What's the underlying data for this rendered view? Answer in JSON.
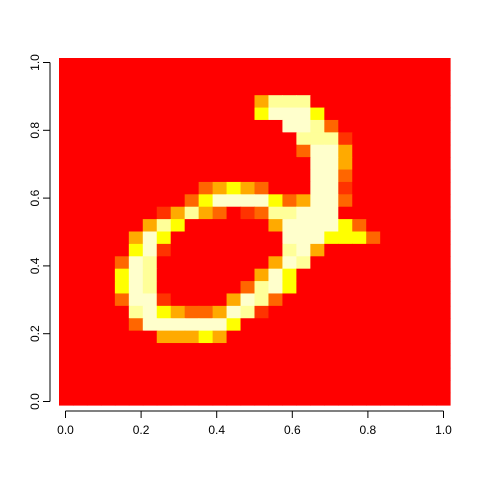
{
  "chart_data": {
    "type": "heatmap",
    "title": "",
    "xlabel": "",
    "ylabel": "",
    "xlim": [
      0,
      1
    ],
    "ylim": [
      0,
      1
    ],
    "grid": false,
    "legend": "none",
    "x_ticks": [
      "0.0",
      "0.2",
      "0.4",
      "0.6",
      "0.8",
      "1.0"
    ],
    "y_ticks": [
      "0.0",
      "0.2",
      "0.4",
      "0.6",
      "0.8",
      "1.0"
    ],
    "n_cols": 28,
    "n_rows": 28,
    "palette": {
      "0": "#ff0000",
      "1": "#ff3300",
      "2": "#ff6600",
      "3": "#ffaa00",
      "4": "#ffff00",
      "5": "#ffff99",
      "6": "#ffffcc"
    },
    "rows_top_to_bottom": [
      "0000000000000000000000000000",
      "0000000000000000000000000000",
      "0000000000000000000000000000",
      "0000000000000000000000000000",
      "0000000000000000000000000000",
      "0000000000000000000000000000",
      "0000000000000000000000000000",
      "0000000000000000000000000000",
      "0000000000000000000000000000",
      "0000000000000000000000000000",
      "0000000000000000000000000000",
      "0000000000000000000000000000",
      "0000000000000000000000000000",
      "0000000000000000000000000000",
      "0000000000000000000000000000",
      "0000000000000000000000000000",
      "0000000000000000000000000000",
      "0000000000000000000000000000",
      "0000000000000000000000000000",
      "0000000000000000000000000000",
      "0000000000000000000000000000",
      "0000000000000000000000000000",
      "0000000000000000000000000000",
      "0000000000000000000000000000",
      "0000000000000000000000000000",
      "0000000000000000000000000000",
      "0000000000000000000000000000",
      "0000000000000000000000000000"
    ],
    "cells": [
      [
        3,
        14,
        3
      ],
      [
        4,
        14,
        6
      ],
      [
        4,
        15,
        6
      ],
      [
        3,
        15,
        5
      ],
      [
        3,
        16,
        5
      ],
      [
        3,
        17,
        5
      ],
      [
        4,
        14,
        4
      ],
      [
        4,
        15,
        6
      ],
      [
        4,
        16,
        6
      ],
      [
        4,
        17,
        6
      ],
      [
        4,
        18,
        4
      ],
      [
        5,
        16,
        6
      ],
      [
        5,
        17,
        6
      ],
      [
        5,
        18,
        5
      ],
      [
        5,
        19,
        2
      ],
      [
        6,
        17,
        5
      ],
      [
        6,
        18,
        5
      ],
      [
        6,
        19,
        5
      ],
      [
        6,
        20,
        1
      ],
      [
        7,
        17,
        2
      ],
      [
        7,
        18,
        6
      ],
      [
        7,
        19,
        6
      ],
      [
        7,
        20,
        3
      ],
      [
        8,
        18,
        6
      ],
      [
        8,
        19,
        6
      ],
      [
        8,
        20,
        3
      ],
      [
        9,
        18,
        6
      ],
      [
        9,
        19,
        6
      ],
      [
        9,
        20,
        2
      ],
      [
        10,
        10,
        2
      ],
      [
        10,
        11,
        3
      ],
      [
        10,
        12,
        4
      ],
      [
        10,
        13,
        3
      ],
      [
        10,
        14,
        2
      ],
      [
        10,
        18,
        6
      ],
      [
        10,
        19,
        6
      ],
      [
        10,
        20,
        1
      ],
      [
        11,
        9,
        2
      ],
      [
        11,
        10,
        4
      ],
      [
        11,
        11,
        6
      ],
      [
        11,
        12,
        6
      ],
      [
        11,
        13,
        6
      ],
      [
        11,
        14,
        6
      ],
      [
        11,
        15,
        4
      ],
      [
        11,
        16,
        2
      ],
      [
        11,
        17,
        3
      ],
      [
        11,
        18,
        6
      ],
      [
        11,
        19,
        6
      ],
      [
        11,
        20,
        2
      ],
      [
        12,
        7,
        1
      ],
      [
        12,
        8,
        3
      ],
      [
        12,
        9,
        5
      ],
      [
        12,
        10,
        3
      ],
      [
        12,
        11,
        2
      ],
      [
        12,
        13,
        1
      ],
      [
        12,
        14,
        2
      ],
      [
        12,
        15,
        5
      ],
      [
        12,
        16,
        5
      ],
      [
        12,
        17,
        6
      ],
      [
        12,
        18,
        6
      ],
      [
        12,
        19,
        6
      ],
      [
        13,
        6,
        3
      ],
      [
        13,
        7,
        5
      ],
      [
        13,
        8,
        4
      ],
      [
        13,
        15,
        3
      ],
      [
        13,
        16,
        6
      ],
      [
        13,
        17,
        6
      ],
      [
        13,
        18,
        6
      ],
      [
        13,
        19,
        6
      ],
      [
        13,
        20,
        4
      ],
      [
        13,
        21,
        2
      ],
      [
        14,
        5,
        3
      ],
      [
        14,
        6,
        6
      ],
      [
        14,
        7,
        4
      ],
      [
        14,
        16,
        6
      ],
      [
        14,
        17,
        6
      ],
      [
        14,
        18,
        6
      ],
      [
        14,
        19,
        4
      ],
      [
        14,
        20,
        4
      ],
      [
        14,
        21,
        4
      ],
      [
        14,
        22,
        2
      ],
      [
        15,
        5,
        4
      ],
      [
        15,
        6,
        6
      ],
      [
        15,
        7,
        1
      ],
      [
        15,
        16,
        5
      ],
      [
        15,
        17,
        6
      ],
      [
        15,
        18,
        3
      ],
      [
        16,
        4,
        2
      ],
      [
        16,
        5,
        6
      ],
      [
        16,
        6,
        5
      ],
      [
        16,
        15,
        3
      ],
      [
        16,
        16,
        6
      ],
      [
        16,
        17,
        5
      ],
      [
        17,
        4,
        4
      ],
      [
        17,
        5,
        6
      ],
      [
        17,
        6,
        5
      ],
      [
        17,
        14,
        3
      ],
      [
        17,
        15,
        6
      ],
      [
        17,
        16,
        4
      ],
      [
        18,
        4,
        4
      ],
      [
        18,
        5,
        6
      ],
      [
        18,
        6,
        5
      ],
      [
        18,
        13,
        2
      ],
      [
        18,
        14,
        5
      ],
      [
        18,
        15,
        6
      ],
      [
        18,
        16,
        4
      ],
      [
        19,
        4,
        2
      ],
      [
        19,
        5,
        6
      ],
      [
        19,
        6,
        6
      ],
      [
        19,
        7,
        1
      ],
      [
        19,
        12,
        3
      ],
      [
        19,
        13,
        6
      ],
      [
        19,
        14,
        5
      ],
      [
        19,
        15,
        2
      ],
      [
        20,
        5,
        5
      ],
      [
        20,
        6,
        6
      ],
      [
        20,
        7,
        4
      ],
      [
        20,
        8,
        3
      ],
      [
        20,
        9,
        2
      ],
      [
        20,
        10,
        2
      ],
      [
        20,
        11,
        3
      ],
      [
        20,
        12,
        6
      ],
      [
        20,
        13,
        5
      ],
      [
        20,
        14,
        1
      ],
      [
        21,
        5,
        2
      ],
      [
        21,
        6,
        6
      ],
      [
        21,
        7,
        6
      ],
      [
        21,
        8,
        6
      ],
      [
        21,
        9,
        6
      ],
      [
        21,
        10,
        6
      ],
      [
        21,
        11,
        6
      ],
      [
        21,
        12,
        4
      ],
      [
        22,
        7,
        3
      ],
      [
        22,
        8,
        3
      ],
      [
        22,
        9,
        3
      ],
      [
        22,
        10,
        4
      ],
      [
        22,
        11,
        3
      ]
    ]
  }
}
